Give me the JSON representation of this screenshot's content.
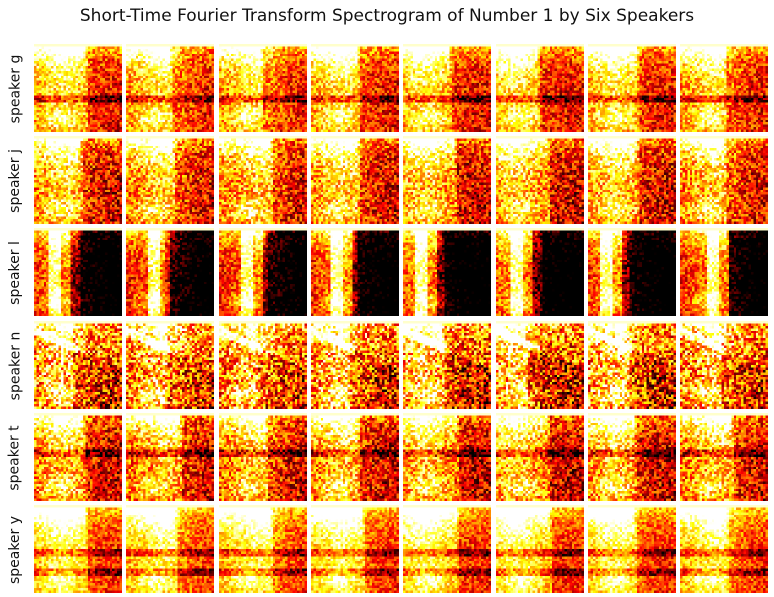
{
  "title": "Short-Time Fourier Transform Spectrogram of Number 1 by Six Speakers",
  "chart_data": {
    "type": "heatmap",
    "title": "Short-Time Fourier Transform Spectrogram of Number 1 by Six Speakers",
    "rows": [
      "speaker g",
      "speaker j",
      "speaker l",
      "speaker n",
      "speaker t",
      "speaker y"
    ],
    "columns_per_row": 8,
    "colormap": "hot",
    "colors": {
      "low": "#000000",
      "mid_low": "#b00000",
      "mid": "#ff2000",
      "mid_high": "#ffb000",
      "high": "#ffff60",
      "peak": "#ffffff"
    },
    "axes_visible": false,
    "grid": false,
    "legend": "none"
  }
}
